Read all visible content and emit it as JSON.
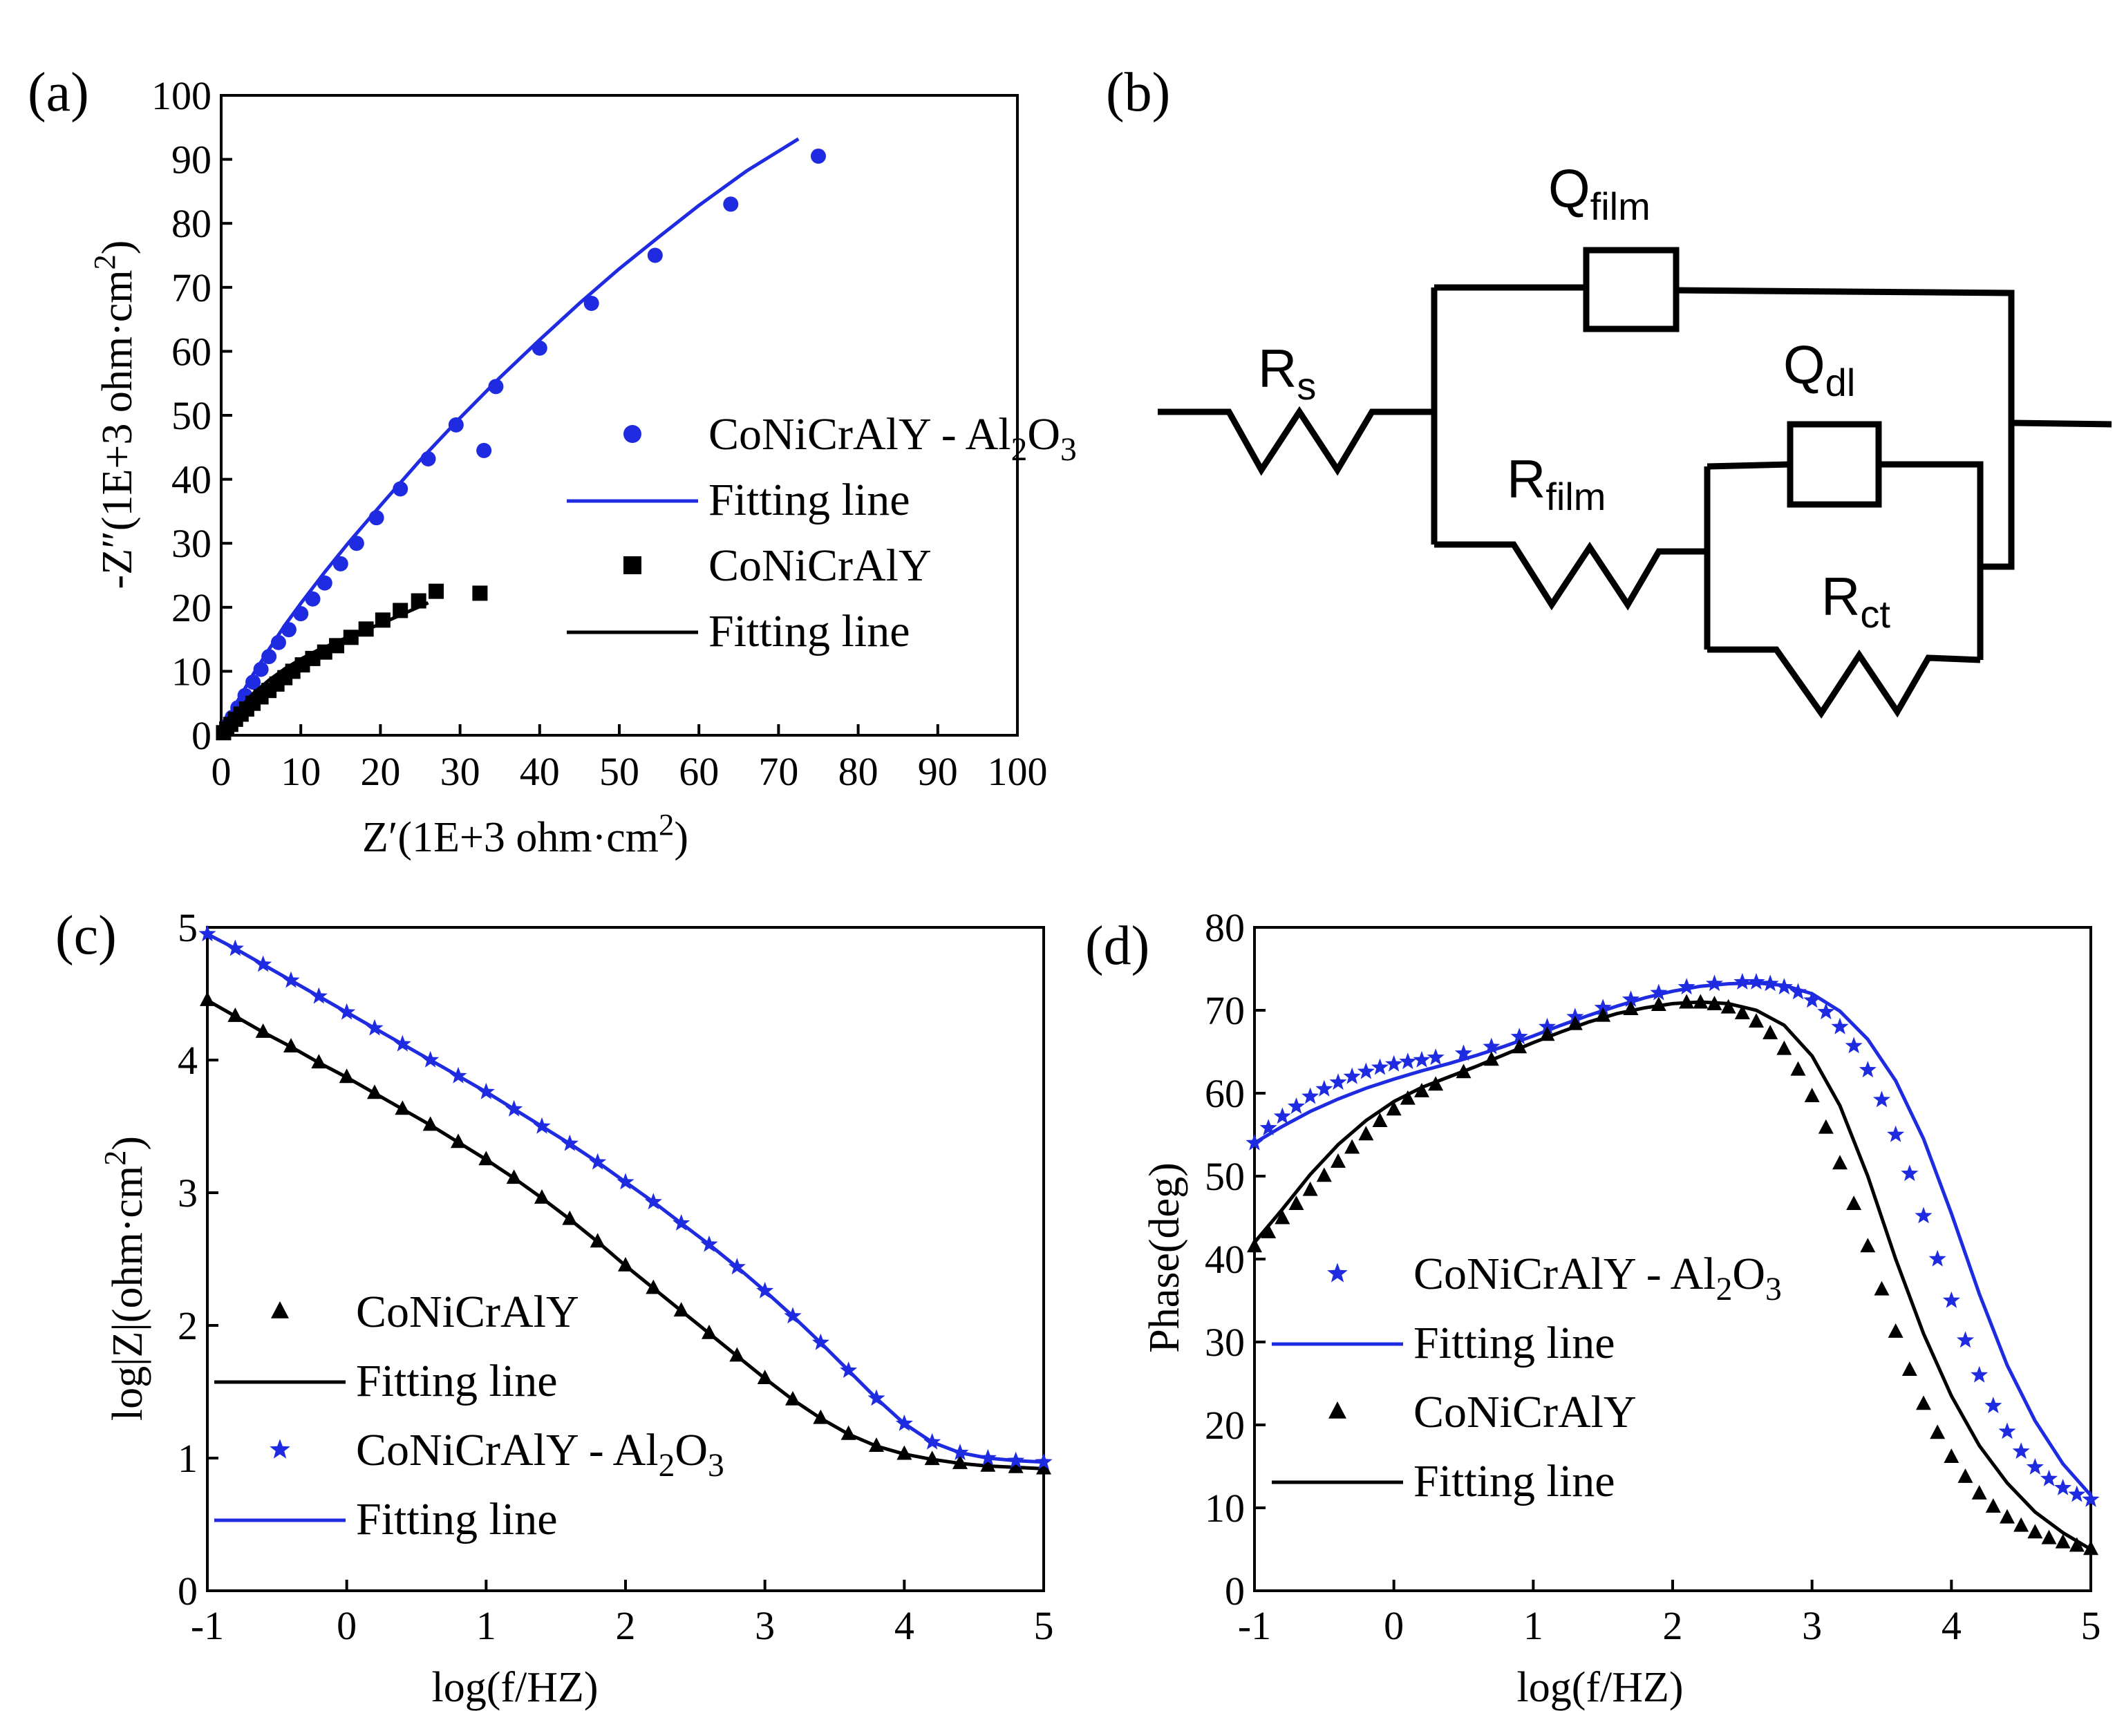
{
  "colors": {
    "blue": "#1f2be0",
    "black": "#000000"
  },
  "panels": {
    "a": "(a)",
    "b": "(b)",
    "c": "(c)",
    "d": "(d)"
  },
  "circuit": {
    "Rs": {
      "main": "R",
      "sub": "s"
    },
    "Qfilm": {
      "main": "Q",
      "sub": "film"
    },
    "Qdl": {
      "main": "Q",
      "sub": "dl"
    },
    "Rfilm": {
      "main": "R",
      "sub": "film"
    },
    "Rct": {
      "main": "R",
      "sub": "ct"
    }
  },
  "chart_data": [
    {
      "id": "a",
      "type": "scatter",
      "title": "",
      "xlabel": {
        "pre": "Z′(1E+3 ohm·cm",
        "sup": "2",
        "post": ")"
      },
      "ylabel": {
        "pre": "-Z″(1E+3 ohm·cm",
        "sup": "2",
        "post": ")"
      },
      "xlim": [
        0,
        100
      ],
      "ylim": [
        0,
        100
      ],
      "xticks": [
        "0",
        "10",
        "20",
        "30",
        "40",
        "50",
        "60",
        "70",
        "80",
        "90",
        "100"
      ],
      "yticks": [
        "0",
        "10",
        "20",
        "30",
        "40",
        "50",
        "60",
        "70",
        "80",
        "90",
        "100"
      ],
      "legend": [
        {
          "marker": "circle",
          "color": "#1f2be0",
          "label": {
            "pre": "CoNiCrAlY - Al",
            "sub1": "2",
            "mid": "O",
            "sub2": "3"
          }
        },
        {
          "marker": "line",
          "color": "#1f2be0",
          "label": {
            "pre": "Fitting line"
          }
        },
        {
          "marker": "square",
          "color": "#000000",
          "label": {
            "pre": "CoNiCrAlY"
          }
        },
        {
          "marker": "line",
          "color": "#000000",
          "label": {
            "pre": "Fitting line"
          }
        }
      ],
      "series": [
        {
          "name": "CoNiCrAlY - Al2O3",
          "kind": "points",
          "marker": "circle",
          "color": "#1f2be0",
          "x": [
            0.3,
            0.8,
            1.4,
            2.1,
            3,
            4,
            5,
            6,
            7.2,
            8.5,
            10,
            11.5,
            13,
            15,
            17,
            19.5,
            22.5,
            26,
            29.5,
            33,
            34.5,
            40,
            46.5,
            54.5,
            64,
            75
          ],
          "y": [
            0.5,
            1.5,
            2.8,
            4.3,
            6.2,
            8.3,
            10.3,
            12.3,
            14.5,
            16.5,
            19,
            21.3,
            23.8,
            26.8,
            30,
            34,
            38.5,
            43.2,
            48.5,
            44.5,
            54.5,
            60.5,
            67.5,
            75,
            83,
            90.5
          ]
        },
        {
          "name": "CoNiCrAlY - Al2O3 fit",
          "kind": "line",
          "color": "#1f2be0",
          "x": [
            0,
            1,
            2,
            4,
            6,
            8,
            10,
            13,
            16,
            20,
            25,
            30,
            35,
            40,
            45,
            50,
            55,
            60,
            66,
            72.5
          ],
          "y": [
            0,
            2.8,
            5.2,
            9.5,
            13.4,
            17.2,
            20.6,
            25.5,
            30.1,
            35.9,
            43,
            49.6,
            55.9,
            61.8,
            67.5,
            72.9,
            77.9,
            82.8,
            88.2,
            93.2
          ]
        },
        {
          "name": "CoNiCrAlY",
          "kind": "points",
          "marker": "square",
          "color": "#000000",
          "x": [
            0.3,
            0.7,
            1.2,
            1.8,
            2.5,
            3.2,
            4,
            5,
            6,
            7,
            8,
            9,
            10.2,
            11.5,
            13,
            14.5,
            16.3,
            18.2,
            20.3,
            22.5,
            24.8,
            27,
            32.5
          ],
          "y": [
            0.4,
            1,
            1.7,
            2.5,
            3.3,
            4.1,
            5,
            6,
            7,
            8,
            9,
            10,
            11,
            12,
            13,
            14,
            15.3,
            16.6,
            18,
            19.5,
            21,
            22.5,
            22.2
          ]
        },
        {
          "name": "CoNiCrAlY fit",
          "kind": "line",
          "color": "#000000",
          "x": [
            0,
            1,
            2,
            3,
            4,
            6,
            8,
            10,
            12,
            14,
            16,
            18,
            20,
            22,
            24,
            26
          ],
          "y": [
            0,
            1.9,
            3.6,
            5.1,
            6.5,
            8.6,
            10.4,
            11.9,
            13.2,
            14.3,
            15.4,
            16.4,
            17.4,
            18.5,
            19.6,
            20.7
          ]
        }
      ]
    },
    {
      "id": "c",
      "type": "scatter",
      "title": "",
      "xlabel": {
        "pre": "log(f/HZ)"
      },
      "ylabel": {
        "pre": "log|Z|(ohm·cm",
        "sup": "2",
        "post": ")"
      },
      "xlim": [
        -1,
        5
      ],
      "ylim": [
        0,
        5
      ],
      "xticks": [
        "-1",
        "0",
        "1",
        "2",
        "3",
        "4",
        "5"
      ],
      "yticks": [
        "0",
        "1",
        "2",
        "3",
        "4",
        "5"
      ],
      "legend": [
        {
          "marker": "triangle",
          "color": "#000000",
          "label": {
            "pre": "CoNiCrAlY"
          }
        },
        {
          "marker": "line",
          "color": "#000000",
          "label": {
            "pre": "Fitting line"
          }
        },
        {
          "marker": "star",
          "color": "#1f2be0",
          "label": {
            "pre": "CoNiCrAlY - Al",
            "sub1": "2",
            "mid": "O",
            "sub2": "3"
          }
        },
        {
          "marker": "line",
          "color": "#1f2be0",
          "label": {
            "pre": "Fitting line"
          }
        }
      ],
      "series": [
        {
          "name": "CoNiCrAlY",
          "kind": "points",
          "marker": "triangle",
          "color": "#000000",
          "x": [
            -1,
            -0.8,
            -0.6,
            -0.4,
            -0.2,
            0,
            0.2,
            0.4,
            0.6,
            0.8,
            1,
            1.2,
            1.4,
            1.6,
            1.8,
            2,
            2.2,
            2.4,
            2.6,
            2.8,
            3,
            3.2,
            3.4,
            3.6,
            3.8,
            4,
            4.2,
            4.4,
            4.6,
            4.8,
            5
          ],
          "y": [
            4.45,
            4.33,
            4.21,
            4.1,
            3.98,
            3.87,
            3.75,
            3.63,
            3.51,
            3.38,
            3.25,
            3.11,
            2.96,
            2.8,
            2.63,
            2.45,
            2.28,
            2.11,
            1.94,
            1.77,
            1.6,
            1.44,
            1.3,
            1.18,
            1.09,
            1.03,
            0.99,
            0.96,
            0.94,
            0.93,
            0.92
          ]
        },
        {
          "name": "CoNiCrAlY fit",
          "kind": "line",
          "color": "#000000",
          "x": [
            -1,
            -0.8,
            -0.6,
            -0.4,
            -0.2,
            0,
            0.2,
            0.4,
            0.6,
            0.8,
            1,
            1.2,
            1.4,
            1.6,
            1.8,
            2,
            2.2,
            2.4,
            2.6,
            2.8,
            3,
            3.2,
            3.4,
            3.6,
            3.8,
            4,
            4.2,
            4.4,
            4.6,
            4.8,
            5
          ],
          "y": [
            4.45,
            4.33,
            4.21,
            4.1,
            3.98,
            3.87,
            3.75,
            3.63,
            3.51,
            3.38,
            3.25,
            3.11,
            2.96,
            2.8,
            2.63,
            2.45,
            2.28,
            2.11,
            1.94,
            1.77,
            1.6,
            1.44,
            1.3,
            1.18,
            1.09,
            1.03,
            0.99,
            0.96,
            0.94,
            0.93,
            0.92
          ]
        },
        {
          "name": "CoNiCrAlY - Al2O3",
          "kind": "points",
          "marker": "star",
          "color": "#1f2be0",
          "x": [
            -1,
            -0.8,
            -0.6,
            -0.4,
            -0.2,
            0,
            0.2,
            0.4,
            0.6,
            0.8,
            1,
            1.2,
            1.4,
            1.6,
            1.8,
            2,
            2.2,
            2.4,
            2.6,
            2.8,
            3,
            3.2,
            3.4,
            3.6,
            3.8,
            4,
            4.2,
            4.4,
            4.6,
            4.8,
            5
          ],
          "y": [
            4.95,
            4.84,
            4.72,
            4.6,
            4.48,
            4.36,
            4.24,
            4.12,
            4,
            3.88,
            3.76,
            3.63,
            3.5,
            3.37,
            3.23,
            3.08,
            2.93,
            2.77,
            2.61,
            2.44,
            2.26,
            2.07,
            1.87,
            1.66,
            1.45,
            1.26,
            1.12,
            1.04,
            1,
            0.98,
            0.97
          ]
        },
        {
          "name": "CoNiCrAlY - Al2O3 fit",
          "kind": "line",
          "color": "#1f2be0",
          "x": [
            -1,
            -0.8,
            -0.6,
            -0.4,
            -0.2,
            0,
            0.2,
            0.4,
            0.6,
            0.8,
            1,
            1.2,
            1.4,
            1.6,
            1.8,
            2,
            2.2,
            2.4,
            2.6,
            2.8,
            3,
            3.2,
            3.4,
            3.6,
            3.8,
            4,
            4.2,
            4.4,
            4.6,
            4.8,
            5
          ],
          "y": [
            4.95,
            4.84,
            4.72,
            4.6,
            4.48,
            4.36,
            4.24,
            4.12,
            4,
            3.88,
            3.76,
            3.63,
            3.5,
            3.37,
            3.23,
            3.08,
            2.93,
            2.77,
            2.61,
            2.44,
            2.26,
            2.07,
            1.87,
            1.66,
            1.45,
            1.26,
            1.12,
            1.04,
            1,
            0.98,
            0.97
          ]
        }
      ]
    },
    {
      "id": "d",
      "type": "scatter",
      "title": "",
      "xlabel": {
        "pre": "log(f/HZ)"
      },
      "ylabel": {
        "pre": "Phase(deg)"
      },
      "xlim": [
        -1,
        5
      ],
      "ylim": [
        0,
        80
      ],
      "xticks": [
        "-1",
        "0",
        "1",
        "2",
        "3",
        "4",
        "5"
      ],
      "yticks": [
        "0",
        "10",
        "20",
        "30",
        "40",
        "50",
        "60",
        "70",
        "80"
      ],
      "legend": [
        {
          "marker": "star",
          "color": "#1f2be0",
          "label": {
            "pre": "CoNiCrAlY - Al",
            "sub1": "2",
            "mid": "O",
            "sub2": "3"
          }
        },
        {
          "marker": "line",
          "color": "#1f2be0",
          "label": {
            "pre": "Fitting line"
          }
        },
        {
          "marker": "triangle",
          "color": "#000000",
          "label": {
            "pre": "CoNiCrAlY"
          }
        },
        {
          "marker": "line",
          "color": "#000000",
          "label": {
            "pre": "Fitting line"
          }
        }
      ],
      "series": [
        {
          "name": "CoNiCrAlY - Al2O3",
          "kind": "points",
          "marker": "star",
          "color": "#1f2be0",
          "x": [
            -1,
            -0.9,
            -0.8,
            -0.7,
            -0.6,
            -0.5,
            -0.4,
            -0.3,
            -0.2,
            -0.1,
            0,
            0.1,
            0.2,
            0.3,
            0.5,
            0.7,
            0.9,
            1.1,
            1.3,
            1.5,
            1.7,
            1.9,
            2.1,
            2.3,
            2.5,
            2.6,
            2.7,
            2.8,
            2.9,
            3,
            3.1,
            3.2,
            3.3,
            3.4,
            3.5,
            3.6,
            3.7,
            3.8,
            3.9,
            4,
            4.1,
            4.2,
            4.3,
            4.4,
            4.5,
            4.6,
            4.7,
            4.8,
            4.9,
            5
          ],
          "y": [
            54,
            55.8,
            57.2,
            58.4,
            59.6,
            60.5,
            61.3,
            62,
            62.6,
            63.1,
            63.5,
            63.8,
            64,
            64.3,
            64.8,
            65.6,
            66.8,
            68,
            69.2,
            70.3,
            71.3,
            72.1,
            72.8,
            73.2,
            73.4,
            73.4,
            73.2,
            72.8,
            72.2,
            71.2,
            69.8,
            68,
            65.7,
            62.8,
            59.2,
            55,
            50.3,
            45.2,
            40,
            35,
            30.2,
            26,
            22.3,
            19.2,
            16.8,
            14.9,
            13.5,
            12.4,
            11.6,
            11
          ]
        },
        {
          "name": "CoNiCrAlY - Al2O3 fit",
          "kind": "line",
          "color": "#1f2be0",
          "x": [
            -1,
            -0.8,
            -0.6,
            -0.4,
            -0.2,
            0,
            0.2,
            0.4,
            0.6,
            0.8,
            1,
            1.2,
            1.4,
            1.6,
            1.8,
            2,
            2.2,
            2.4,
            2.6,
            2.8,
            3,
            3.2,
            3.4,
            3.6,
            3.8,
            4,
            4.2,
            4.4,
            4.6,
            4.8,
            5
          ],
          "y": [
            54,
            56,
            57.8,
            59.3,
            60.6,
            61.7,
            62.7,
            63.6,
            64.6,
            65.7,
            66.9,
            68.2,
            69.4,
            70.5,
            71.5,
            72.3,
            72.9,
            73.2,
            73.3,
            73,
            72,
            69.9,
            66.5,
            61.5,
            54.5,
            45.5,
            35.8,
            27.2,
            20.5,
            15.3,
            11.5
          ]
        },
        {
          "name": "CoNiCrAlY",
          "kind": "points",
          "marker": "triangle",
          "color": "#000000",
          "x": [
            -1,
            -0.9,
            -0.8,
            -0.7,
            -0.6,
            -0.5,
            -0.4,
            -0.3,
            -0.2,
            -0.1,
            0,
            0.1,
            0.2,
            0.3,
            0.5,
            0.7,
            0.9,
            1.1,
            1.3,
            1.5,
            1.7,
            1.9,
            2.1,
            2.2,
            2.3,
            2.4,
            2.5,
            2.6,
            2.7,
            2.8,
            2.9,
            3,
            3.1,
            3.2,
            3.3,
            3.4,
            3.5,
            3.6,
            3.7,
            3.8,
            3.9,
            4,
            4.1,
            4.2,
            4.3,
            4.4,
            4.5,
            4.6,
            4.7,
            4.8,
            4.9,
            5
          ],
          "y": [
            41.5,
            43.2,
            44.9,
            46.6,
            48.3,
            50,
            51.7,
            53.4,
            55,
            56.6,
            58,
            59.3,
            60.2,
            61,
            62.5,
            64,
            65.5,
            67,
            68.3,
            69.3,
            70.1,
            70.6,
            70.9,
            70.9,
            70.7,
            70.3,
            69.6,
            68.6,
            67.2,
            65.3,
            62.8,
            59.6,
            55.8,
            51.5,
            46.6,
            41.5,
            36.3,
            31.2,
            26.6,
            22.5,
            19,
            16.1,
            13.7,
            11.7,
            10.1,
            8.8,
            7.8,
            7,
            6.3,
            5.8,
            5.4,
            5
          ]
        },
        {
          "name": "CoNiCrAlY fit",
          "kind": "line",
          "color": "#000000",
          "x": [
            -1,
            -0.8,
            -0.6,
            -0.4,
            -0.2,
            0,
            0.2,
            0.4,
            0.6,
            0.8,
            1,
            1.2,
            1.4,
            1.6,
            1.8,
            2,
            2.2,
            2.4,
            2.6,
            2.8,
            3,
            3.2,
            3.4,
            3.6,
            3.8,
            4,
            4.2,
            4.4,
            4.6,
            4.8,
            5
          ],
          "y": [
            42,
            46,
            50.2,
            53.8,
            56.7,
            59,
            60.7,
            62,
            63.3,
            64.7,
            66.1,
            67.4,
            68.6,
            69.6,
            70.3,
            70.8,
            71,
            70.8,
            70,
            68.2,
            64.5,
            58.5,
            50,
            40,
            31,
            23.5,
            17.5,
            13,
            9.5,
            7,
            5
          ]
        }
      ]
    }
  ]
}
